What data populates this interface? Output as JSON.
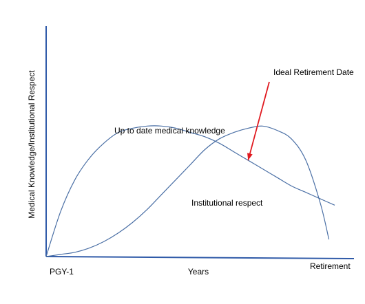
{
  "chart_data": {
    "type": "line",
    "title": "",
    "xlabel": "Years",
    "ylabel": "Medical Knowledge/Institutional Respect",
    "x_tick_labels": {
      "start": "PGY-1",
      "end": "Retirement"
    },
    "x_range": [
      0,
      1
    ],
    "y_range": [
      0,
      1
    ],
    "grid": false,
    "legend": "none",
    "series": [
      {
        "name": "Up to date medical knowledge",
        "color": "#4a6fa5",
        "x": [
          0,
          0.05,
          0.1,
          0.15,
          0.2,
          0.25,
          0.3,
          0.35,
          0.4,
          0.45,
          0.5,
          0.55,
          0.6,
          0.65,
          0.7,
          0.75,
          0.8,
          0.85,
          0.9,
          0.95,
          1.0
        ],
        "y": [
          0.0,
          0.21,
          0.36,
          0.46,
          0.53,
          0.58,
          0.6,
          0.61,
          0.61,
          0.6,
          0.58,
          0.56,
          0.53,
          0.49,
          0.45,
          0.41,
          0.37,
          0.33,
          0.3,
          0.27,
          0.24
        ]
      },
      {
        "name": "Institutional respect",
        "color": "#4a6fa5",
        "x": [
          0,
          0.05,
          0.1,
          0.15,
          0.2,
          0.25,
          0.3,
          0.35,
          0.4,
          0.45,
          0.5,
          0.55,
          0.6,
          0.65,
          0.7,
          0.75,
          0.8,
          0.85,
          0.9,
          0.95,
          0.98
        ],
        "y": [
          0.0,
          0.01,
          0.02,
          0.04,
          0.07,
          0.11,
          0.16,
          0.22,
          0.29,
          0.36,
          0.43,
          0.5,
          0.55,
          0.58,
          0.6,
          0.61,
          0.59,
          0.55,
          0.45,
          0.25,
          0.08
        ]
      }
    ],
    "annotations": [
      {
        "text": "Ideal Retirement Date",
        "points_to": [
          0.7,
          0.45
        ],
        "arrow_color": "#e0191f"
      }
    ]
  }
}
